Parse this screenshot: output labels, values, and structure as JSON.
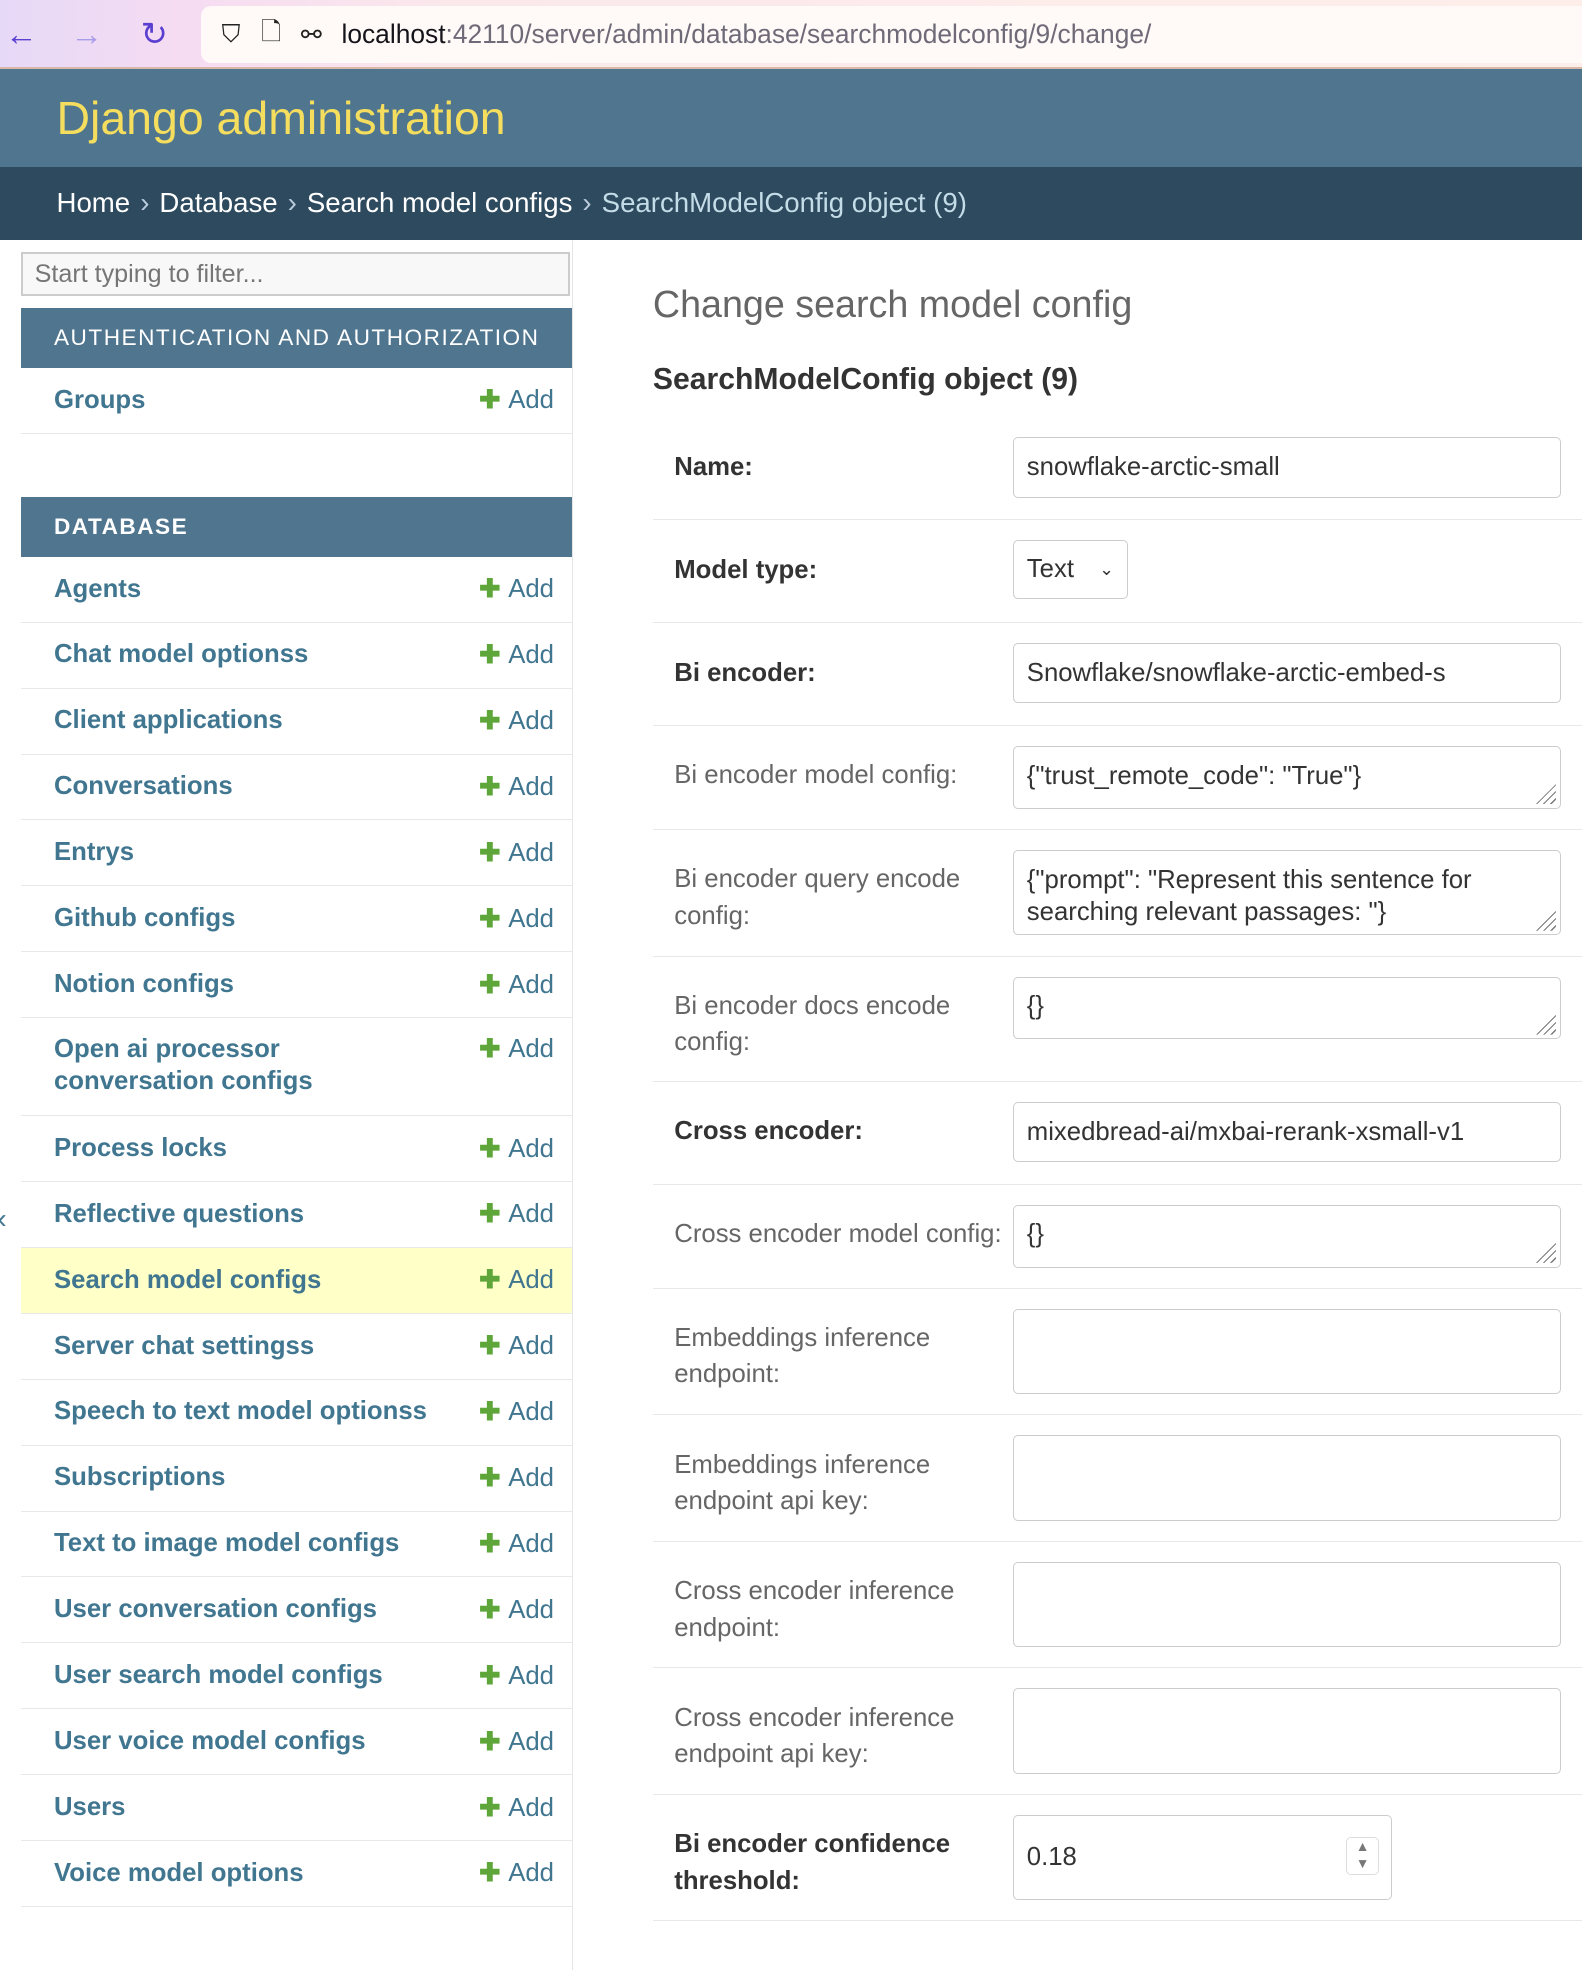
{
  "browser": {
    "url_host": "localhost",
    "url_path": ":42110/server/admin/database/searchmodelconfig/9/change/"
  },
  "header": {
    "title": "Django administration"
  },
  "breadcrumbs": [
    "Home",
    "Database",
    "Search model configs",
    "SearchModelConfig object (9)"
  ],
  "breadcrumb_sep": "›",
  "sidebar": {
    "filter_placeholder": "Start typing to filter...",
    "add_label": "Add",
    "sections": [
      {
        "title": "AUTHENTICATION AND AUTHORIZATION",
        "items": [
          "Groups"
        ]
      },
      {
        "title": "DATABASE",
        "items": [
          "Agents",
          "Chat model optionss",
          "Client applications",
          "Conversations",
          "Entrys",
          "Github configs",
          "Notion configs",
          "Open ai processor conversation configs",
          "Process locks",
          "Reflective questions",
          "Search model configs",
          "Server chat settingss",
          "Speech to text model optionss",
          "Subscriptions",
          "Text to image model configs",
          "User conversation configs",
          "User search model configs",
          "User voice model configs",
          "Users",
          "Voice model options"
        ]
      }
    ],
    "selected": "Search model configs",
    "toggle": "‹"
  },
  "main": {
    "title": "Change search model config",
    "object_title": "SearchModelConfig object (9)",
    "fields": [
      {
        "label": "Name:",
        "value": "snowflake-arctic-small",
        "required": true,
        "type": "text"
      },
      {
        "label": "Model type:",
        "value": "Text",
        "required": true,
        "type": "select"
      },
      {
        "label": "Bi encoder:",
        "value": "Snowflake/snowflake-arctic-embed-s",
        "required": true,
        "type": "text"
      },
      {
        "label": "Bi encoder model config:",
        "value": "{\"trust_remote_code\": \"True\"}",
        "required": false,
        "type": "textarea"
      },
      {
        "label": "Bi encoder query encode config:",
        "value": "{\"prompt\": \"Represent this sentence for searching relevant passages: \"}",
        "required": false,
        "type": "textarea"
      },
      {
        "label": "Bi encoder docs encode config:",
        "value": "{}",
        "required": false,
        "type": "textarea"
      },
      {
        "label": "Cross encoder:",
        "value": "mixedbread-ai/mxbai-rerank-xsmall-v1",
        "required": true,
        "type": "text"
      },
      {
        "label": "Cross encoder model config:",
        "value": "{}",
        "required": false,
        "type": "textarea"
      },
      {
        "label": "Embeddings inference endpoint:",
        "value": "",
        "required": false,
        "type": "text"
      },
      {
        "label": "Embeddings inference endpoint api key:",
        "value": "",
        "required": false,
        "type": "text"
      },
      {
        "label": "Cross encoder inference endpoint:",
        "value": "",
        "required": false,
        "type": "text"
      },
      {
        "label": "Cross encoder inference endpoint api key:",
        "value": "",
        "required": false,
        "type": "text"
      },
      {
        "label": "Bi encoder confidence threshold:",
        "value": "0.18",
        "required": true,
        "type": "number"
      }
    ]
  },
  "colors": {
    "header": "#4f758f",
    "breadcrumbs": "#2e4a5e",
    "title": "#f5dd5d",
    "link": "#417690",
    "add_plus": "#5ea63a",
    "selected_row": "#ffffc8"
  }
}
